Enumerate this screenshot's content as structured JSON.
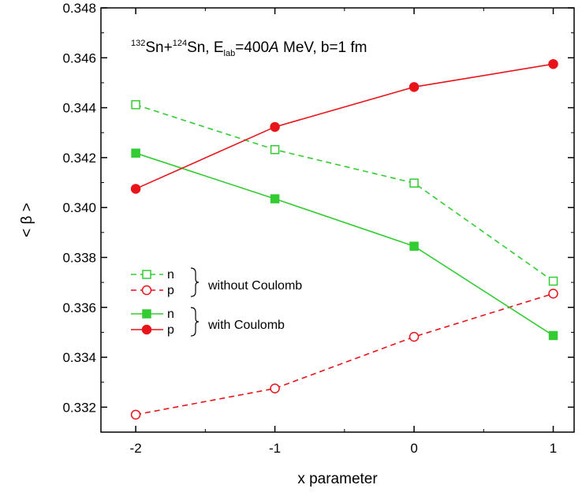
{
  "chart_data": {
    "type": "line",
    "xlabel": "x parameter",
    "ylabel": "< β >",
    "xlim": [
      -2.25,
      1.15
    ],
    "ylim": [
      0.331,
      0.348
    ],
    "x_ticks": [
      -2,
      -1,
      0,
      1
    ],
    "x_tick_labels": [
      "-2",
      "-1",
      "0",
      "1"
    ],
    "y_ticks": [
      0.332,
      0.334,
      0.336,
      0.338,
      0.34,
      0.342,
      0.344,
      0.346,
      0.348
    ],
    "y_tick_labels": [
      "0.332",
      "0.334",
      "0.336",
      "0.338",
      "0.340",
      "0.342",
      "0.344",
      "0.346",
      "0.348"
    ],
    "grid": false,
    "annotation": {
      "iso1_mass": "132",
      "iso1": "Sn+",
      "iso2_mass": "124",
      "iso2": "Sn, E",
      "sub": "lab",
      "eq": "=400",
      "italic": "A",
      "rest": " MeV, b=1 fm"
    },
    "legend": {
      "placement": "center-left",
      "group_labels": [
        "without Coulomb",
        "with Coulomb"
      ]
    },
    "x": [
      -2,
      -1,
      0,
      1
    ],
    "series": [
      {
        "name": "n",
        "group": "without Coulomb",
        "color": "#33cc33",
        "dash": "dashed",
        "marker": "square-open",
        "values": [
          0.34412,
          0.34232,
          0.34098,
          0.33705
        ]
      },
      {
        "name": "p",
        "group": "without Coulomb",
        "color": "#e8141a",
        "dash": "dashed",
        "marker": "circle-open",
        "values": [
          0.3317,
          0.33275,
          0.33482,
          0.33655
        ]
      },
      {
        "name": "n",
        "group": "with Coulomb",
        "color": "#33cc33",
        "dash": "solid",
        "marker": "square-filled",
        "values": [
          0.34218,
          0.34035,
          0.33845,
          0.33487
        ]
      },
      {
        "name": "p",
        "group": "with Coulomb",
        "color": "#e8141a",
        "dash": "solid",
        "marker": "circle-filled",
        "values": [
          0.34075,
          0.34323,
          0.34483,
          0.34575
        ]
      }
    ]
  }
}
